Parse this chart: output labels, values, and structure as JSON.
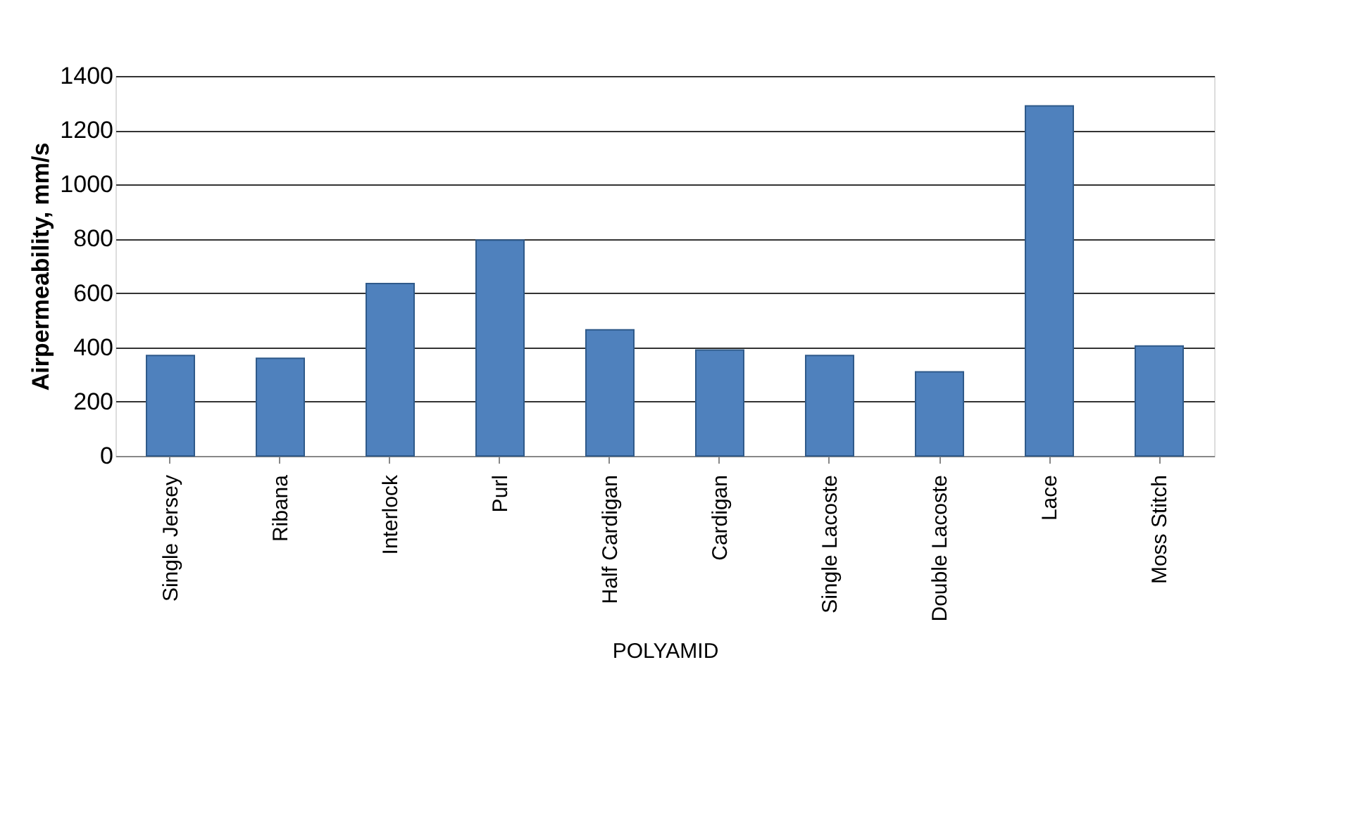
{
  "chart_data": {
    "type": "bar",
    "xlabel": "POLYAMID",
    "ylabel": "Airpermeability, mm/s",
    "categories": [
      "Single Jersey",
      "Ribana",
      "Interlock",
      "Purl",
      "Half Cardigan",
      "Cardigan",
      "Single Lacoste",
      "Double Lacoste",
      "Lace",
      "Moss Stitch"
    ],
    "values": [
      370,
      360,
      635,
      795,
      465,
      390,
      370,
      310,
      1290,
      405
    ],
    "color": "#4f81bd",
    "ylim": [
      0,
      1400
    ],
    "yticks": [
      0,
      200,
      400,
      600,
      800,
      1000,
      1200,
      1400
    ],
    "grid": "y"
  }
}
